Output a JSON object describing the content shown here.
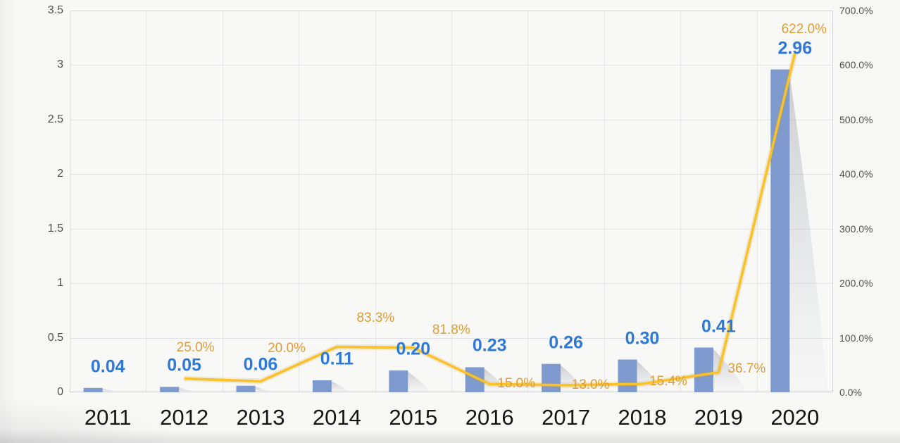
{
  "page": {
    "background": "#f8f8f7"
  },
  "chart_data": {
    "type": "combo",
    "title": "",
    "legend": "none",
    "grid": true,
    "categories": [
      "2011",
      "2012",
      "2013",
      "2014",
      "2015",
      "2016",
      "2017",
      "2018",
      "2019",
      "2020"
    ],
    "series": [
      {
        "name": "value-bars",
        "type": "bar",
        "axis": "left",
        "color": "#7e9ace",
        "label_color": "#2e78d6",
        "values": [
          0.04,
          0.05,
          0.06,
          0.11,
          0.2,
          0.23,
          0.26,
          0.3,
          0.41,
          2.96
        ],
        "labels": [
          "0.04",
          "0.05",
          "0.06",
          "0.11",
          "0.20",
          "0.23",
          "0.26",
          "0.30",
          "0.41",
          "2.96"
        ]
      },
      {
        "name": "growth-rate-line",
        "type": "line",
        "axis": "right",
        "color": "#f9c22a",
        "label_color": "#dd9d38",
        "values": [
          null,
          25.0,
          20.0,
          83.3,
          81.8,
          15.0,
          13.0,
          15.4,
          36.7,
          622.0
        ],
        "labels": [
          null,
          "25.0%",
          "20.0%",
          "83.3%",
          "81.8%",
          "15.0%",
          "13.0%",
          "15.4%",
          "36.7%",
          "622.0%"
        ]
      }
    ],
    "left_axis": {
      "min": 0,
      "max": 3.5,
      "step": 0.5,
      "ticks": [
        "3.5",
        "3",
        "2.5",
        "2",
        "1.5",
        "1",
        "0.5",
        "0"
      ]
    },
    "right_axis": {
      "min": 0,
      "max": 700,
      "step": 100,
      "ticks": [
        "700.0%",
        "600.0%",
        "500.0%",
        "400.0%",
        "300.0%",
        "200.0%",
        "100.0%",
        "0.0%"
      ]
    },
    "line_label_offsets": [
      null,
      [
        16,
        -44
      ],
      [
        37,
        -47
      ],
      [
        55,
        -41
      ],
      [
        54,
        -25
      ],
      [
        38,
        0
      ],
      [
        35,
        0
      ],
      [
        37,
        -3
      ],
      [
        40,
        -5
      ],
      [
        13,
        -33
      ]
    ]
  }
}
